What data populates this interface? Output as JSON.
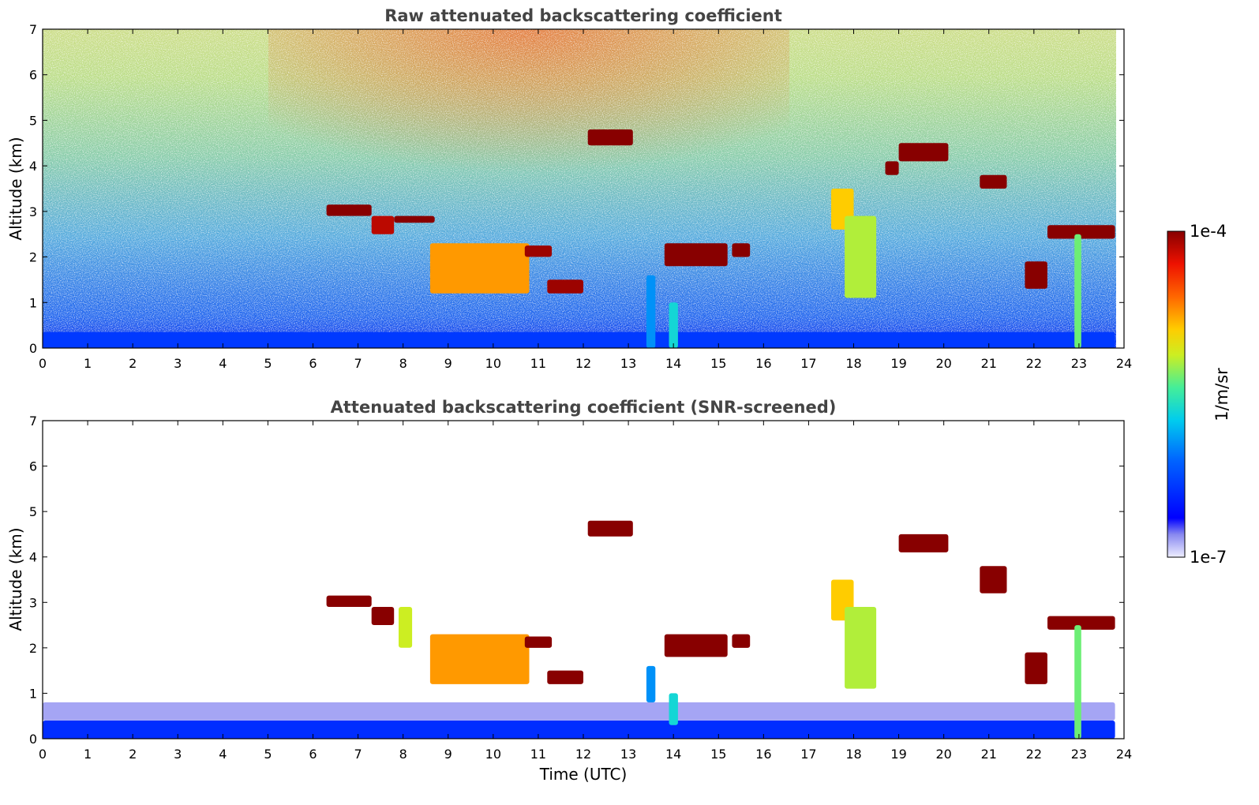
{
  "chart_data": [
    {
      "type": "heatmap",
      "title": "Raw attenuated backscattering coefficient",
      "xlabel": "",
      "ylabel": "Altitude (km)",
      "xlim": [
        0,
        24
      ],
      "ylim": [
        0,
        7
      ],
      "xticks": [
        "0",
        "1",
        "2",
        "3",
        "4",
        "5",
        "6",
        "7",
        "8",
        "9",
        "10",
        "11",
        "12",
        "13",
        "14",
        "15",
        "16",
        "17",
        "18",
        "19",
        "20",
        "21",
        "22",
        "23",
        "24"
      ],
      "yticks": [
        "0",
        "1",
        "2",
        "3",
        "4",
        "5",
        "6",
        "7"
      ],
      "features": [
        {
          "t0": 0.0,
          "t1": 23.8,
          "z0": 0.0,
          "z1": 0.35,
          "level": 0.22
        },
        {
          "t0": 6.3,
          "t1": 7.3,
          "z0": 2.9,
          "z1": 3.15,
          "level": 1.0
        },
        {
          "t0": 7.3,
          "t1": 7.8,
          "z0": 2.5,
          "z1": 2.9,
          "level": 0.95
        },
        {
          "t0": 7.8,
          "t1": 8.7,
          "z0": 2.75,
          "z1": 2.9,
          "level": 1.0
        },
        {
          "t0": 8.6,
          "t1": 10.8,
          "z0": 1.2,
          "z1": 2.3,
          "level": 0.75
        },
        {
          "t0": 10.7,
          "t1": 11.3,
          "z0": 2.0,
          "z1": 2.25,
          "level": 0.98
        },
        {
          "t0": 11.2,
          "t1": 12.0,
          "z0": 1.2,
          "z1": 1.5,
          "level": 0.98
        },
        {
          "t0": 12.1,
          "t1": 13.1,
          "z0": 4.45,
          "z1": 4.8,
          "level": 1.0
        },
        {
          "t0": 13.4,
          "t1": 13.6,
          "z0": 0.0,
          "z1": 1.6,
          "level": 0.35
        },
        {
          "t0": 13.9,
          "t1": 14.1,
          "z0": 0.0,
          "z1": 1.0,
          "level": 0.45
        },
        {
          "t0": 13.8,
          "t1": 15.2,
          "z0": 1.8,
          "z1": 2.3,
          "level": 1.0
        },
        {
          "t0": 15.3,
          "t1": 15.7,
          "z0": 2.0,
          "z1": 2.3,
          "level": 1.0
        },
        {
          "t0": 17.5,
          "t1": 18.0,
          "z0": 2.6,
          "z1": 3.5,
          "level": 0.7
        },
        {
          "t0": 17.8,
          "t1": 18.5,
          "z0": 1.1,
          "z1": 2.9,
          "level": 0.6
        },
        {
          "t0": 18.7,
          "t1": 19.0,
          "z0": 3.8,
          "z1": 4.1,
          "level": 1.0
        },
        {
          "t0": 19.0,
          "t1": 20.1,
          "z0": 4.1,
          "z1": 4.5,
          "level": 1.0
        },
        {
          "t0": 20.8,
          "t1": 21.4,
          "z0": 3.5,
          "z1": 3.8,
          "level": 1.0
        },
        {
          "t0": 21.8,
          "t1": 22.3,
          "z0": 1.3,
          "z1": 1.9,
          "level": 1.0
        },
        {
          "t0": 22.3,
          "t1": 23.8,
          "z0": 2.4,
          "z1": 2.7,
          "level": 1.0
        },
        {
          "t0": 22.9,
          "t1": 23.05,
          "z0": 0.0,
          "z1": 2.5,
          "level": 0.55
        }
      ],
      "colorbar": {
        "label": "1/m/sr",
        "min_label": "1e-7",
        "max_label": "1e-4",
        "scale": "log"
      }
    },
    {
      "type": "heatmap",
      "title": "Attenuated backscattering coefficient (SNR-screened)",
      "xlabel": "Time (UTC)",
      "ylabel": "Altitude (km)",
      "xlim": [
        0,
        24
      ],
      "ylim": [
        0,
        7
      ],
      "xticks": [
        "0",
        "1",
        "2",
        "3",
        "4",
        "5",
        "6",
        "7",
        "8",
        "9",
        "10",
        "11",
        "12",
        "13",
        "14",
        "15",
        "16",
        "17",
        "18",
        "19",
        "20",
        "21",
        "22",
        "23",
        "24"
      ],
      "yticks": [
        "0",
        "1",
        "2",
        "3",
        "4",
        "5",
        "6",
        "7"
      ],
      "features": [
        {
          "t0": 0.0,
          "t1": 23.8,
          "z0": 0.0,
          "z1": 0.4,
          "level": 0.2
        },
        {
          "t0": 0.0,
          "t1": 23.8,
          "z0": 0.4,
          "z1": 0.8,
          "level": 0.05
        },
        {
          "t0": 6.3,
          "t1": 7.3,
          "z0": 2.9,
          "z1": 3.15,
          "level": 1.0
        },
        {
          "t0": 7.3,
          "t1": 7.8,
          "z0": 2.5,
          "z1": 2.9,
          "level": 1.0
        },
        {
          "t0": 7.9,
          "t1": 8.2,
          "z0": 2.0,
          "z1": 2.9,
          "level": 0.62
        },
        {
          "t0": 8.6,
          "t1": 10.8,
          "z0": 1.2,
          "z1": 2.3,
          "level": 0.75
        },
        {
          "t0": 10.7,
          "t1": 11.3,
          "z0": 2.0,
          "z1": 2.25,
          "level": 1.0
        },
        {
          "t0": 11.2,
          "t1": 12.0,
          "z0": 1.2,
          "z1": 1.5,
          "level": 1.0
        },
        {
          "t0": 12.1,
          "t1": 13.1,
          "z0": 4.45,
          "z1": 4.8,
          "level": 1.0
        },
        {
          "t0": 13.4,
          "t1": 13.6,
          "z0": 0.8,
          "z1": 1.6,
          "level": 0.35
        },
        {
          "t0": 13.9,
          "t1": 14.1,
          "z0": 0.3,
          "z1": 1.0,
          "level": 0.45
        },
        {
          "t0": 13.8,
          "t1": 15.2,
          "z0": 1.8,
          "z1": 2.3,
          "level": 1.0
        },
        {
          "t0": 15.3,
          "t1": 15.7,
          "z0": 2.0,
          "z1": 2.3,
          "level": 1.0
        },
        {
          "t0": 17.5,
          "t1": 18.0,
          "z0": 2.6,
          "z1": 3.5,
          "level": 0.7
        },
        {
          "t0": 17.8,
          "t1": 18.5,
          "z0": 1.1,
          "z1": 2.9,
          "level": 0.6
        },
        {
          "t0": 19.0,
          "t1": 20.1,
          "z0": 4.1,
          "z1": 4.5,
          "level": 1.0
        },
        {
          "t0": 20.8,
          "t1": 21.4,
          "z0": 3.2,
          "z1": 3.8,
          "level": 1.0
        },
        {
          "t0": 21.8,
          "t1": 22.3,
          "z0": 1.2,
          "z1": 1.9,
          "level": 1.0
        },
        {
          "t0": 22.3,
          "t1": 23.8,
          "z0": 2.4,
          "z1": 2.7,
          "level": 1.0
        },
        {
          "t0": 22.9,
          "t1": 23.05,
          "z0": 0.0,
          "z1": 2.5,
          "level": 0.55
        }
      ]
    }
  ]
}
